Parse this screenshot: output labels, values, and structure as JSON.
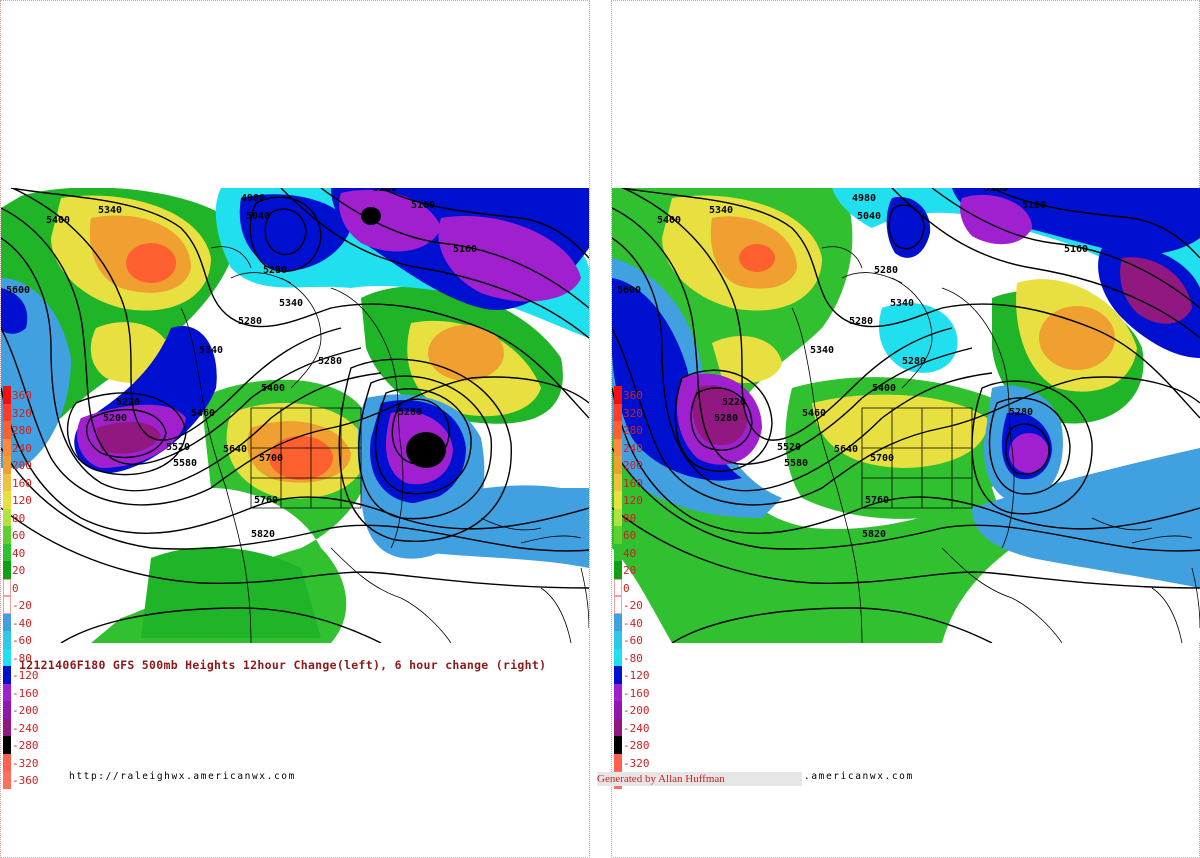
{
  "caption": "12121406F180 GFS 500mb Heights 12hour Change(left), 6 hour change (right)",
  "url": "http://raleighwx.americanwx.com",
  "url_partial": ".americanwx.com",
  "credit": "Generated by Allan Huffman",
  "legend": [
    {
      "label": "360",
      "color": "#f01010"
    },
    {
      "label": "320",
      "color": "#ff3c28"
    },
    {
      "label": "280",
      "color": "#ff6030"
    },
    {
      "label": "240",
      "color": "#ff8a3c"
    },
    {
      "label": "200",
      "color": "#f0a030"
    },
    {
      "label": "160",
      "color": "#f0c040"
    },
    {
      "label": "120",
      "color": "#e8e040"
    },
    {
      "label": "80",
      "color": "#b4e040"
    },
    {
      "label": "60",
      "color": "#60d030"
    },
    {
      "label": "40",
      "color": "#30c030"
    },
    {
      "label": "20",
      "color": "#10a018"
    },
    {
      "label": "0",
      "color": "#ffffff"
    },
    {
      "label": "-20",
      "color": "#ffffff"
    },
    {
      "label": "-40",
      "color": "#40a0e0"
    },
    {
      "label": "-60",
      "color": "#30c8e8"
    },
    {
      "label": "-80",
      "color": "#20e0f0"
    },
    {
      "label": "-120",
      "color": "#0010d0"
    },
    {
      "label": "-160",
      "color": "#a020d0"
    },
    {
      "label": "-200",
      "color": "#9018b0"
    },
    {
      "label": "-240",
      "color": "#901880"
    },
    {
      "label": "-280",
      "color": "#000000"
    },
    {
      "label": "-320",
      "color": "#ff6050"
    },
    {
      "label": "-360",
      "color": "#ff7060"
    }
  ],
  "left_map": {
    "contour_labels": [
      "4980",
      "5040",
      "5280",
      "5340",
      "5400",
      "5100",
      "5160",
      "5600",
      "5220",
      "5200",
      "5460",
      "5520",
      "5580",
      "5640",
      "5700",
      "5760",
      "5820",
      "5340",
      "5280",
      "5400",
      "5280",
      "5340"
    ]
  },
  "right_map": {
    "contour_labels": [
      "4980",
      "5040",
      "5280",
      "5340",
      "5400",
      "5100",
      "5160",
      "5600",
      "5220",
      "5280",
      "5460",
      "5520",
      "5580",
      "5640",
      "5700",
      "5760",
      "5820",
      "5340",
      "5280",
      "5400",
      "5280",
      "5340"
    ]
  }
}
